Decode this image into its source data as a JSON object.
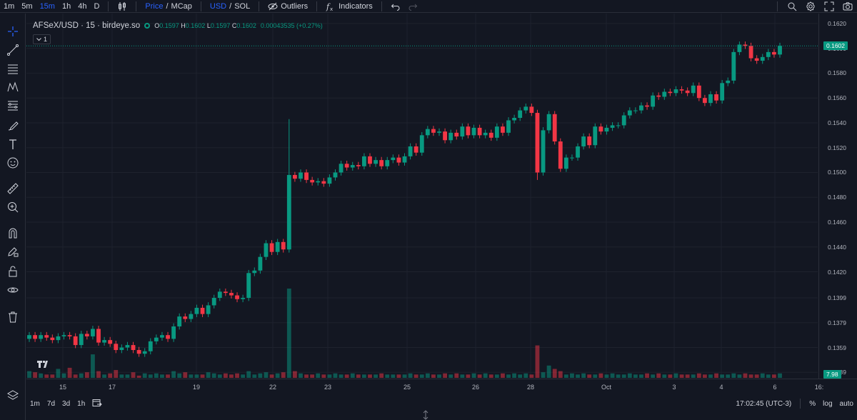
{
  "toolbar": {
    "timeframes": [
      "1m",
      "5m",
      "15m",
      "1h",
      "4h",
      "D"
    ],
    "active_timeframe": "15m",
    "price": "Price",
    "slash1": "/",
    "mcap": "MCap",
    "usd": "USD",
    "slash2": "/",
    "sol": "SOL",
    "outliers": "Outliers",
    "indicators": "Indicators"
  },
  "legend": {
    "symbol": "AFSeX/USD · 15 · birdeye.so",
    "o_label": "O",
    "o": "0.1597",
    "h_label": "H",
    "h": "0.1602",
    "l_label": "L",
    "l": "0.1597",
    "c_label": "C",
    "c": "0.1602",
    "change": "0.00043535 (+0.27%)",
    "collapse": "1"
  },
  "price_axis": {
    "ticks": [
      "0.1620",
      "0.1600",
      "0.1580",
      "0.1560",
      "0.1540",
      "0.1520",
      "0.1500",
      "0.1480",
      "0.1460",
      "0.1440",
      "0.1420",
      "0.1399",
      "0.1379",
      "0.1359",
      "0.1339"
    ],
    "last_price": "0.1602",
    "volume_tag": "7.98"
  },
  "time_axis": {
    "labels": [
      "15",
      "17",
      "19",
      "22",
      "23",
      "25",
      "26",
      "28",
      "Oct",
      "3",
      "4",
      "6",
      "16:"
    ]
  },
  "bottom": {
    "ranges": [
      "1m",
      "7d",
      "3d",
      "1h"
    ],
    "clock": "17:02:45 (UTC-3)",
    "percent": "%",
    "log": "log",
    "auto": "auto"
  },
  "colors": {
    "up": "#089981",
    "down": "#f23645",
    "accent": "#2962ff",
    "background": "#131722"
  },
  "chart_data": {
    "type": "candlestick",
    "title": "AFSeX/USD · 15 · birdeye.so",
    "ylim": [
      0.1334,
      0.1628
    ],
    "last": 0.1602,
    "x_labels": [
      "15",
      "17",
      "19",
      "22",
      "23",
      "25",
      "26",
      "28",
      "Oct",
      "3",
      "4",
      "6"
    ],
    "close": [
      0.1369,
      0.1366,
      0.1369,
      0.1367,
      0.1365,
      0.1368,
      0.1369,
      0.1368,
      0.1361,
      0.137,
      0.1368,
      0.1374,
      0.1363,
      0.1365,
      0.1362,
      0.1357,
      0.1359,
      0.1361,
      0.1357,
      0.1354,
      0.1356,
      0.1364,
      0.1367,
      0.1369,
      0.1366,
      0.1376,
      0.1384,
      0.1382,
      0.1386,
      0.1391,
      0.1386,
      0.1393,
      0.1399,
      0.1404,
      0.1403,
      0.1401,
      0.1398,
      0.1399,
      0.1419,
      0.1421,
      0.1432,
      0.1443,
      0.1436,
      0.1444,
      0.1438,
      0.1498,
      0.1495,
      0.15,
      0.1494,
      0.1492,
      0.1493,
      0.1491,
      0.1496,
      0.15,
      0.1507,
      0.1504,
      0.1506,
      0.1505,
      0.1513,
      0.1507,
      0.151,
      0.1505,
      0.151,
      0.1512,
      0.1508,
      0.1513,
      0.1521,
      0.1516,
      0.153,
      0.1535,
      0.1532,
      0.1533,
      0.1526,
      0.1532,
      0.1529,
      0.1537,
      0.153,
      0.1536,
      0.153,
      0.1532,
      0.1528,
      0.1537,
      0.1532,
      0.1542,
      0.1544,
      0.155,
      0.1553,
      0.1548,
      0.15,
      0.1534,
      0.1547,
      0.1525,
      0.1503,
      0.1512,
      0.1512,
      0.1521,
      0.1529,
      0.1522,
      0.1537,
      0.1533,
      0.1536,
      0.1538,
      0.1538,
      0.1546,
      0.155,
      0.155,
      0.1554,
      0.1553,
      0.1562,
      0.1561,
      0.1565,
      0.1564,
      0.1567,
      0.1566,
      0.1564,
      0.157,
      0.156,
      0.1556,
      0.1563,
      0.1558,
      0.1572,
      0.1574,
      0.1597,
      0.1603,
      0.1602,
      0.1592,
      0.159,
      0.1593,
      0.1597,
      0.1595,
      0.1602
    ],
    "volume": [
      0.6,
      0.5,
      0.4,
      0.3,
      0.3,
      0.8,
      0.4,
      0.9,
      0.3,
      0.4,
      0.5,
      2.1,
      0.6,
      0.3,
      0.4,
      0.7,
      0.3,
      0.3,
      0.5,
      0.2,
      0.4,
      0.3,
      0.4,
      0.3,
      0.3,
      0.6,
      0.4,
      0.5,
      0.3,
      0.3,
      0.3,
      0.5,
      0.4,
      0.3,
      0.4,
      0.3,
      0.4,
      0.3,
      0.6,
      0.3,
      0.4,
      0.5,
      0.3,
      0.4,
      0.5,
      7.98,
      0.6,
      0.4,
      0.3,
      0.3,
      0.4,
      0.3,
      0.3,
      0.4,
      0.3,
      0.3,
      0.4,
      0.3,
      0.3,
      0.3,
      0.3,
      0.4,
      0.3,
      0.3,
      0.3,
      0.3,
      0.4,
      0.3,
      0.3,
      0.4,
      0.3,
      0.3,
      0.4,
      0.3,
      0.4,
      0.3,
      0.3,
      0.4,
      0.3,
      0.4,
      0.3,
      0.3,
      0.4,
      0.3,
      0.4,
      0.3,
      0.4,
      0.3,
      2.9,
      0.5,
      1.1,
      0.8,
      0.6,
      0.3,
      0.4,
      0.3,
      0.4,
      0.3,
      0.3,
      0.4,
      0.3,
      0.4,
      0.3,
      0.3,
      0.4,
      0.3,
      0.3,
      0.4,
      0.3,
      0.4,
      0.3,
      0.3,
      0.4,
      0.3,
      0.3,
      0.3,
      0.4,
      0.3,
      0.3,
      0.4,
      0.3,
      0.3,
      0.4,
      0.3,
      0.4,
      0.3,
      0.3,
      0.4,
      0.3,
      0.3,
      0.4
    ]
  }
}
